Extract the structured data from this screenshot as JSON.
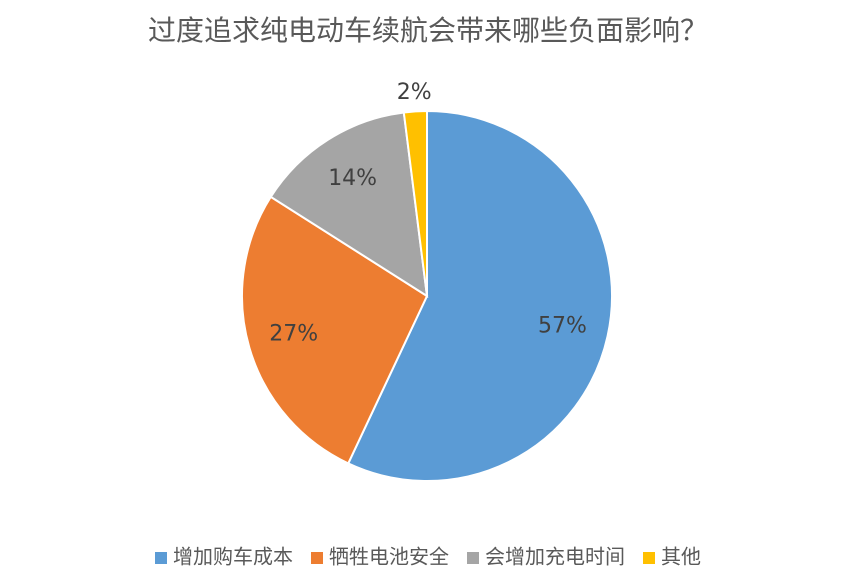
{
  "chart_data": {
    "type": "pie",
    "title": "过度追求纯电动车续航会带来哪些负面影响？",
    "categories": [
      "增加购车成本",
      "牺牲电池安全",
      "会增加充电时间",
      "其他"
    ],
    "values": [
      57,
      27,
      14,
      2
    ],
    "value_labels": [
      "57%",
      "27%",
      "14%",
      "2%"
    ],
    "colors": [
      "#5b9bd5",
      "#ed7d31",
      "#a5a5a5",
      "#ffc000"
    ],
    "legend": "bottom"
  }
}
